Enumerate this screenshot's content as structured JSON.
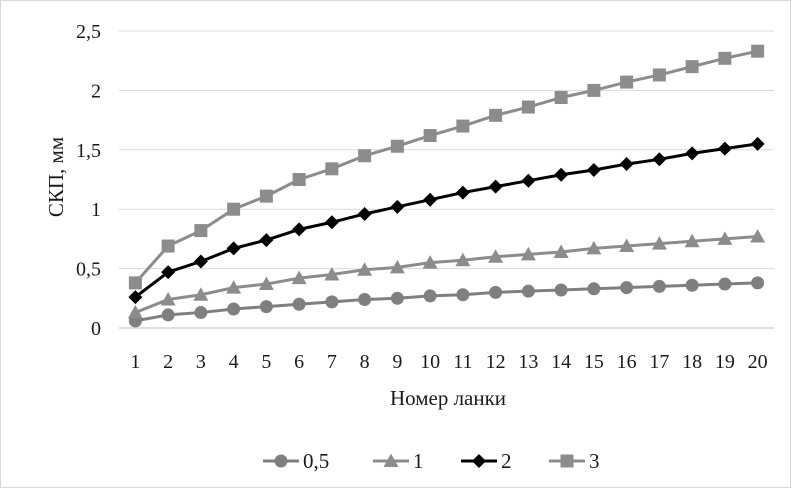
{
  "chart_data": {
    "type": "line",
    "xlabel": "Номер ланки",
    "ylabel": "СКП, мм",
    "ylim": [
      0,
      2.5
    ],
    "y_ticks": [
      "0",
      "0,5",
      "1",
      "1,5",
      "2",
      "2,5"
    ],
    "y_tick_values": [
      0,
      0.5,
      1,
      1.5,
      2,
      2.5
    ],
    "x": [
      1,
      2,
      3,
      4,
      5,
      6,
      7,
      8,
      9,
      10,
      11,
      12,
      13,
      14,
      15,
      16,
      17,
      18,
      19,
      20
    ],
    "x_tick_labels": [
      "1",
      "2",
      "3",
      "4",
      "5",
      "6",
      "7",
      "8",
      "9",
      "10",
      "11",
      "12",
      "13",
      "14",
      "15",
      "16",
      "17",
      "18",
      "19",
      "20"
    ],
    "grid": "horizontal",
    "legend_position": "bottom",
    "series": [
      {
        "name": "0,5",
        "marker": "circle",
        "color": "#7f7f7f",
        "values": [
          0.06,
          0.11,
          0.13,
          0.16,
          0.18,
          0.2,
          0.22,
          0.24,
          0.25,
          0.27,
          0.28,
          0.3,
          0.31,
          0.32,
          0.33,
          0.34,
          0.35,
          0.36,
          0.37,
          0.38
        ]
      },
      {
        "name": "1",
        "marker": "triangle",
        "color": "#8c8c8c",
        "values": [
          0.13,
          0.24,
          0.28,
          0.34,
          0.37,
          0.42,
          0.45,
          0.49,
          0.51,
          0.55,
          0.57,
          0.6,
          0.62,
          0.64,
          0.67,
          0.69,
          0.71,
          0.73,
          0.75,
          0.77
        ]
      },
      {
        "name": "2",
        "marker": "diamond",
        "color": "#000000",
        "values": [
          0.26,
          0.47,
          0.56,
          0.67,
          0.74,
          0.83,
          0.89,
          0.96,
          1.02,
          1.08,
          1.14,
          1.19,
          1.24,
          1.29,
          1.33,
          1.38,
          1.42,
          1.47,
          1.51,
          1.55
        ]
      },
      {
        "name": "3",
        "marker": "square",
        "color": "#8c8c8c",
        "values": [
          0.38,
          0.69,
          0.82,
          1.0,
          1.11,
          1.25,
          1.34,
          1.45,
          1.53,
          1.62,
          1.7,
          1.79,
          1.86,
          1.94,
          2.0,
          2.07,
          2.13,
          2.2,
          2.27,
          2.33
        ]
      }
    ]
  }
}
